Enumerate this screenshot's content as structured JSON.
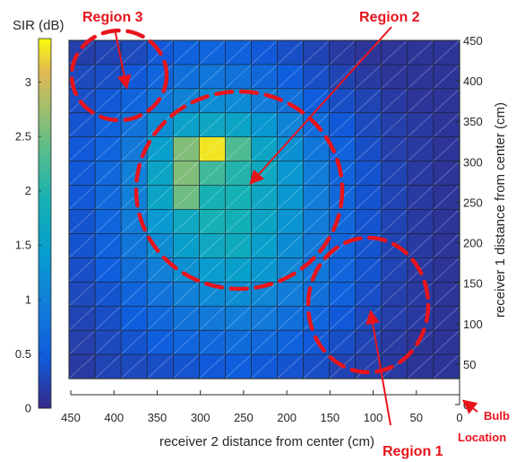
{
  "chart_data": {
    "type": "heatmap",
    "colorbar_label": "SIR (dB)",
    "colorbar_ticks": [
      "0",
      "0.5",
      "1",
      "1.5",
      "2",
      "2.5",
      "3"
    ],
    "clim": [
      0,
      3.4
    ],
    "xlabel": "receiver 2 distance from center (cm)",
    "x_ticks": [
      "450",
      "400",
      "350",
      "300",
      "250",
      "200",
      "150",
      "100",
      "50",
      "0"
    ],
    "x_range": [
      450,
      0
    ],
    "ylabel": "receiver 1 distance from center (cm)",
    "y_ticks": [
      "0",
      "50",
      "100",
      "150",
      "200",
      "250",
      "300",
      "350",
      "400",
      "450"
    ],
    "y_range": [
      0,
      450
    ],
    "colormap": "parula",
    "grid_rows_top_to_bottom": [
      [
        0.2,
        0.25,
        0.3,
        0.45,
        0.55,
        0.6,
        0.55,
        0.45,
        0.35,
        0.25,
        0.15,
        0.1,
        0.1,
        0.1,
        0.1
      ],
      [
        0.3,
        0.35,
        0.45,
        0.6,
        0.75,
        0.85,
        0.8,
        0.65,
        0.5,
        0.35,
        0.25,
        0.15,
        0.1,
        0.1,
        0.1
      ],
      [
        0.35,
        0.45,
        0.6,
        0.85,
        1.05,
        1.2,
        1.15,
        0.95,
        0.75,
        0.5,
        0.35,
        0.25,
        0.15,
        0.1,
        0.1
      ],
      [
        0.4,
        0.55,
        0.8,
        1.2,
        1.55,
        1.65,
        1.6,
        1.35,
        1.05,
        0.7,
        0.45,
        0.3,
        0.2,
        0.15,
        0.1
      ],
      [
        0.45,
        0.6,
        0.9,
        1.5,
        2.6,
        3.3,
        2.3,
        1.6,
        1.25,
        0.85,
        0.55,
        0.35,
        0.2,
        0.15,
        0.1
      ],
      [
        0.45,
        0.65,
        1.0,
        1.6,
        2.6,
        2.2,
        2.0,
        1.7,
        1.35,
        0.95,
        0.6,
        0.4,
        0.25,
        0.15,
        0.1
      ],
      [
        0.45,
        0.65,
        1.0,
        1.6,
        2.5,
        1.9,
        1.9,
        1.65,
        1.35,
        0.95,
        0.65,
        0.4,
        0.25,
        0.15,
        0.1
      ],
      [
        0.4,
        0.6,
        0.95,
        1.4,
        1.7,
        1.9,
        1.85,
        1.6,
        1.3,
        0.95,
        0.65,
        0.4,
        0.25,
        0.15,
        0.1
      ],
      [
        0.4,
        0.55,
        0.85,
        1.2,
        1.5,
        1.7,
        1.75,
        1.5,
        1.2,
        0.9,
        0.6,
        0.4,
        0.25,
        0.15,
        0.1
      ],
      [
        0.35,
        0.5,
        0.75,
        1.0,
        1.25,
        1.45,
        1.5,
        1.35,
        1.1,
        0.85,
        0.6,
        0.4,
        0.25,
        0.15,
        0.1
      ],
      [
        0.3,
        0.4,
        0.6,
        0.8,
        1.0,
        1.15,
        1.2,
        1.1,
        0.95,
        0.75,
        0.55,
        0.35,
        0.2,
        0.15,
        0.1
      ],
      [
        0.25,
        0.35,
        0.5,
        0.65,
        0.8,
        0.9,
        0.95,
        0.9,
        0.75,
        0.6,
        0.45,
        0.3,
        0.2,
        0.15,
        0.1
      ],
      [
        0.2,
        0.3,
        0.4,
        0.5,
        0.6,
        0.65,
        0.7,
        0.65,
        0.55,
        0.45,
        0.35,
        0.25,
        0.15,
        0.1,
        0.1
      ],
      [
        0.15,
        0.25,
        0.3,
        0.35,
        0.4,
        0.45,
        0.5,
        0.45,
        0.4,
        0.35,
        0.25,
        0.2,
        0.15,
        0.1,
        0.1
      ]
    ],
    "annotations": [
      {
        "text": "Region 1",
        "color": "#e8141c"
      },
      {
        "text": "Region 2",
        "color": "#e8141c"
      },
      {
        "text": "Region 3",
        "color": "#e8141c"
      }
    ],
    "bulb_label_line1": "Bulb",
    "bulb_label_line2": "Location",
    "annotation_color": "#e8141c"
  }
}
